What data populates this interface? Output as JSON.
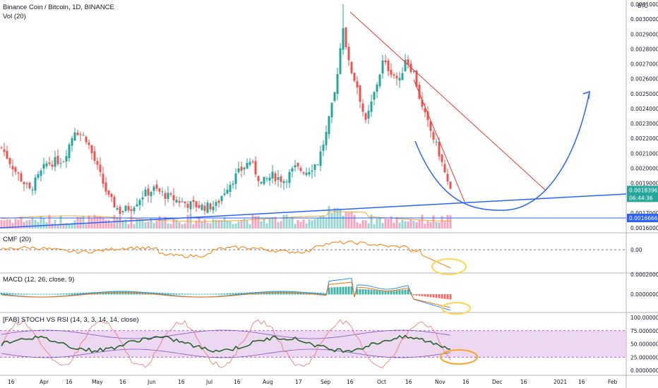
{
  "legends": {
    "main": "Binance Coin / Bitcoin, 1D, BINANCE",
    "vol": "Vol (20)",
    "cmf": "CMF (20)",
    "macd": "MACD (12, 26, close, 9)",
    "stoch": "[FAB] STOCH VS RSI (14, 3, 3, 14, 14, close)"
  },
  "price_axis": {
    "unit": "BTC",
    "ticks": [
      "0.0031000",
      "0.0030000",
      "0.0029000",
      "0.0028000",
      "0.0027000",
      "0.0026000",
      "0.0025000",
      "0.0024000",
      "0.0023000",
      "0.0022000",
      "0.0021000",
      "0.0020000",
      "0.0019000",
      "0.0017000",
      "0.0016000"
    ],
    "last_price": "0.0018396",
    "countdown": "06:44:36",
    "trendline_value": "0.0016666"
  },
  "cmf_axis": {
    "ticks": [
      "0.00"
    ]
  },
  "macd_axis": {
    "ticks": [
      "0.0002000",
      "0.0000000"
    ]
  },
  "stoch_axis": {
    "ticks": [
      "100.0000000",
      "75.0000000",
      "50.0000000",
      "25.0000000",
      "0.0000000"
    ]
  },
  "x_axis": {
    "ticks": [
      "16",
      "Apr",
      "16",
      "May",
      "16",
      "Jun",
      "16",
      "Jul",
      "16",
      "Aug",
      "17",
      "Sep",
      "16",
      "Oct",
      "16",
      "Nov",
      "16",
      "Dec",
      "16",
      "2021",
      "16",
      "Feb"
    ]
  },
  "colors": {
    "up": "#26a69a",
    "down": "#ef5350",
    "trend_red": "#e53935",
    "trend_blue": "#2962ff",
    "cmf": "#f57c00",
    "macd": "#2196f3",
    "signal": "#ff6d00",
    "stoch_band": "#e1bee7",
    "stoch_line": "#1b5e20",
    "rsi_line": "#e57373",
    "bb": "#7e57c2",
    "highlight": "#ffd54f"
  },
  "chart_data": {
    "type": "candlestick",
    "x_range": [
      "2020-03-10",
      "2021-02-20"
    ],
    "y_range": [
      0.0016,
      0.0031
    ],
    "events": [
      {
        "label": "peak",
        "date": "2020-09-12",
        "high": 0.00307
      },
      {
        "label": "last_close",
        "date": "2020-11-07",
        "close": 0.0018396
      }
    ],
    "cmf_zero": 0.0,
    "stoch_levels": [
      25,
      75
    ]
  }
}
